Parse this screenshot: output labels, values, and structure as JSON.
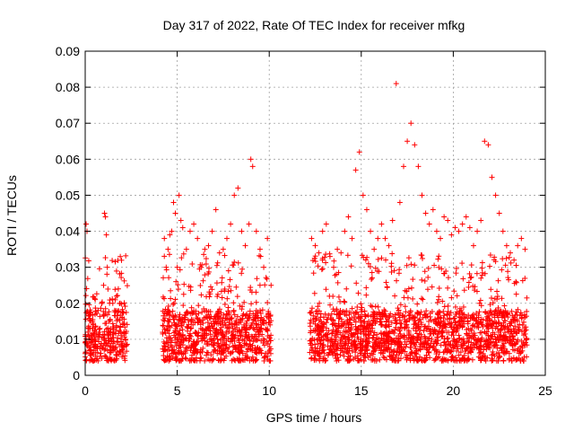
{
  "chart_data": {
    "type": "scatter",
    "title": "Day 317 of 2022, Rate Of TEC Index for receiver mfkg",
    "xlabel": "GPS time / hours",
    "ylabel": "ROTI / TECUs",
    "xlim": [
      0,
      25
    ],
    "ylim": [
      0,
      0.09
    ],
    "xticks": [
      0,
      5,
      10,
      15,
      20,
      25
    ],
    "xtick_labels": [
      "0",
      "5",
      "10",
      "15",
      "20",
      "25"
    ],
    "yticks": [
      0,
      0.01,
      0.02,
      0.03,
      0.04,
      0.05,
      0.06,
      0.07,
      0.08,
      0.09
    ],
    "ytick_labels": [
      "0",
      "0.01",
      "0.02",
      "0.03",
      "0.04",
      "0.05",
      "0.06",
      "0.07",
      "0.08",
      "0.09"
    ],
    "grid": true,
    "marker": "+",
    "color": "#ff0000",
    "series": [
      {
        "name": "ROTI",
        "x": [
          0.05,
          0.1,
          0.15,
          0.2,
          0.3,
          0.4,
          0.5,
          0.6,
          0.7,
          0.8,
          0.9,
          1.0,
          1.05,
          1.1,
          1.15,
          1.2,
          1.3,
          1.4,
          1.5,
          1.6,
          1.7,
          1.8,
          1.9,
          2.0,
          2.1,
          2.2,
          4.3,
          4.4,
          4.5,
          4.6,
          4.7,
          4.8,
          4.9,
          5.0,
          5.1,
          5.2,
          5.3,
          5.5,
          5.7,
          5.9,
          6.1,
          6.3,
          6.5,
          6.7,
          6.9,
          7.1,
          7.3,
          7.5,
          7.7,
          7.9,
          8.1,
          8.3,
          8.5,
          8.7,
          8.9,
          9.0,
          9.1,
          9.3,
          9.5,
          9.7,
          9.9,
          10.1,
          12.3,
          12.5,
          12.7,
          12.9,
          13.1,
          13.3,
          13.5,
          13.7,
          13.9,
          14.1,
          14.3,
          14.5,
          14.7,
          14.9,
          15.1,
          15.3,
          15.5,
          15.7,
          15.9,
          16.1,
          16.3,
          16.5,
          16.7,
          16.9,
          17.1,
          17.3,
          17.5,
          17.7,
          17.9,
          18.1,
          18.3,
          18.5,
          18.7,
          18.9,
          19.1,
          19.3,
          19.5,
          19.7,
          19.9,
          20.1,
          20.3,
          20.5,
          20.7,
          20.9,
          21.1,
          21.3,
          21.5,
          21.7,
          21.9,
          22.1,
          22.3,
          22.5,
          22.7,
          22.9,
          23.1,
          23.3,
          23.5,
          23.7,
          23.9
        ],
        "y": [
          0.042,
          0.04,
          0.012,
          0.01,
          0.009,
          0.015,
          0.011,
          0.012,
          0.018,
          0.013,
          0.02,
          0.025,
          0.045,
          0.044,
          0.039,
          0.03,
          0.015,
          0.012,
          0.02,
          0.018,
          0.022,
          0.024,
          0.02,
          0.016,
          0.012,
          0.01,
          0.038,
          0.03,
          0.035,
          0.039,
          0.04,
          0.048,
          0.045,
          0.03,
          0.05,
          0.043,
          0.041,
          0.035,
          0.04,
          0.042,
          0.038,
          0.03,
          0.035,
          0.036,
          0.04,
          0.046,
          0.034,
          0.035,
          0.038,
          0.042,
          0.05,
          0.052,
          0.04,
          0.036,
          0.042,
          0.06,
          0.058,
          0.04,
          0.035,
          0.03,
          0.038,
          0.025,
          0.038,
          0.036,
          0.034,
          0.04,
          0.042,
          0.033,
          0.03,
          0.035,
          0.034,
          0.04,
          0.044,
          0.038,
          0.057,
          0.062,
          0.05,
          0.046,
          0.04,
          0.035,
          0.038,
          0.042,
          0.038,
          0.036,
          0.043,
          0.081,
          0.048,
          0.058,
          0.065,
          0.07,
          0.064,
          0.058,
          0.05,
          0.045,
          0.042,
          0.046,
          0.04,
          0.038,
          0.044,
          0.043,
          0.039,
          0.041,
          0.04,
          0.042,
          0.044,
          0.041,
          0.036,
          0.04,
          0.043,
          0.065,
          0.064,
          0.055,
          0.05,
          0.045,
          0.04,
          0.036,
          0.034,
          0.032,
          0.036,
          0.038,
          0.035
        ]
      }
    ]
  }
}
